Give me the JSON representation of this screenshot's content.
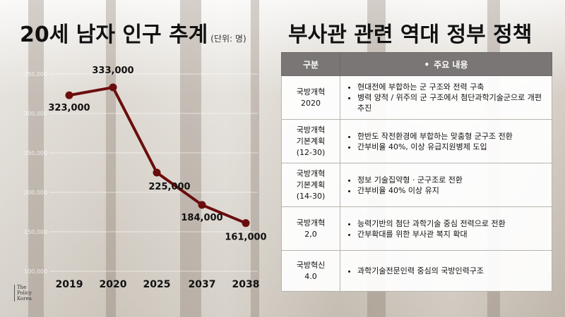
{
  "chart_title": "20세 남자 인구 추계",
  "chart_unit": "(단위: 명)",
  "table_title": "부사관 관련 역대 정부 정책",
  "chart_data": {
    "type": "line",
    "title": "20세 남자 인구 추계",
    "unit": "(단위: 명)",
    "categories": [
      "2019",
      "2020",
      "2025",
      "2037",
      "2038"
    ],
    "values": [
      323000,
      333000,
      225000,
      184000,
      161000
    ],
    "value_labels": [
      "323,000",
      "333,000",
      "225,000",
      "184,000",
      "161,000"
    ],
    "ylim": [
      100000,
      350000
    ],
    "y_ticks": [
      100000,
      150000,
      200000,
      250000,
      300000,
      350000
    ],
    "y_tick_labels": [
      "100,000",
      "150,000",
      "200,000",
      "250,000",
      "300,000",
      "350,000"
    ],
    "line_color": "#6b0d0d",
    "grid": true
  },
  "table": {
    "header_col1": "구분",
    "header_col2": "주요 내용",
    "header_bullet": "•",
    "rows": [
      {
        "category": [
          "국방개혁",
          "2020"
        ],
        "items": [
          "현대전에 부합하는 군 구조와 전력 구축",
          "병력 양적 / 위주의 군 구조에서 첨단과학기술군으로 개편 추진"
        ]
      },
      {
        "category": [
          "국방개혁",
          "기본계획",
          "(12-30)"
        ],
        "items": [
          "한반도 작전환경에 부합하는 맞춤형 군구조 전환",
          "간부비율 40%, 이상 유급지원병제 도입"
        ]
      },
      {
        "category": [
          "국방개혁",
          "기본계획",
          "(14-30)"
        ],
        "items": [
          "정보 기술집약형 · 군구조로 전환",
          "간부비율 40% 이상 유지"
        ]
      },
      {
        "category": [
          "국방개혁",
          "2,0"
        ],
        "items": [
          "능력기반의 첨단 과학기술 중심 전력으로 전환",
          "간부확대를 위한 부사관 복지 확대"
        ]
      },
      {
        "category": [
          "국방혁신",
          "4.0"
        ],
        "items": [
          "과학기술전문인력 중심의 국방인력구조"
        ]
      }
    ]
  },
  "logo": {
    "line1": "The",
    "line2": "Policy",
    "line3": "Korea"
  },
  "colors": {
    "header_bg": "#7a7675",
    "line": "#6b0d0d"
  }
}
